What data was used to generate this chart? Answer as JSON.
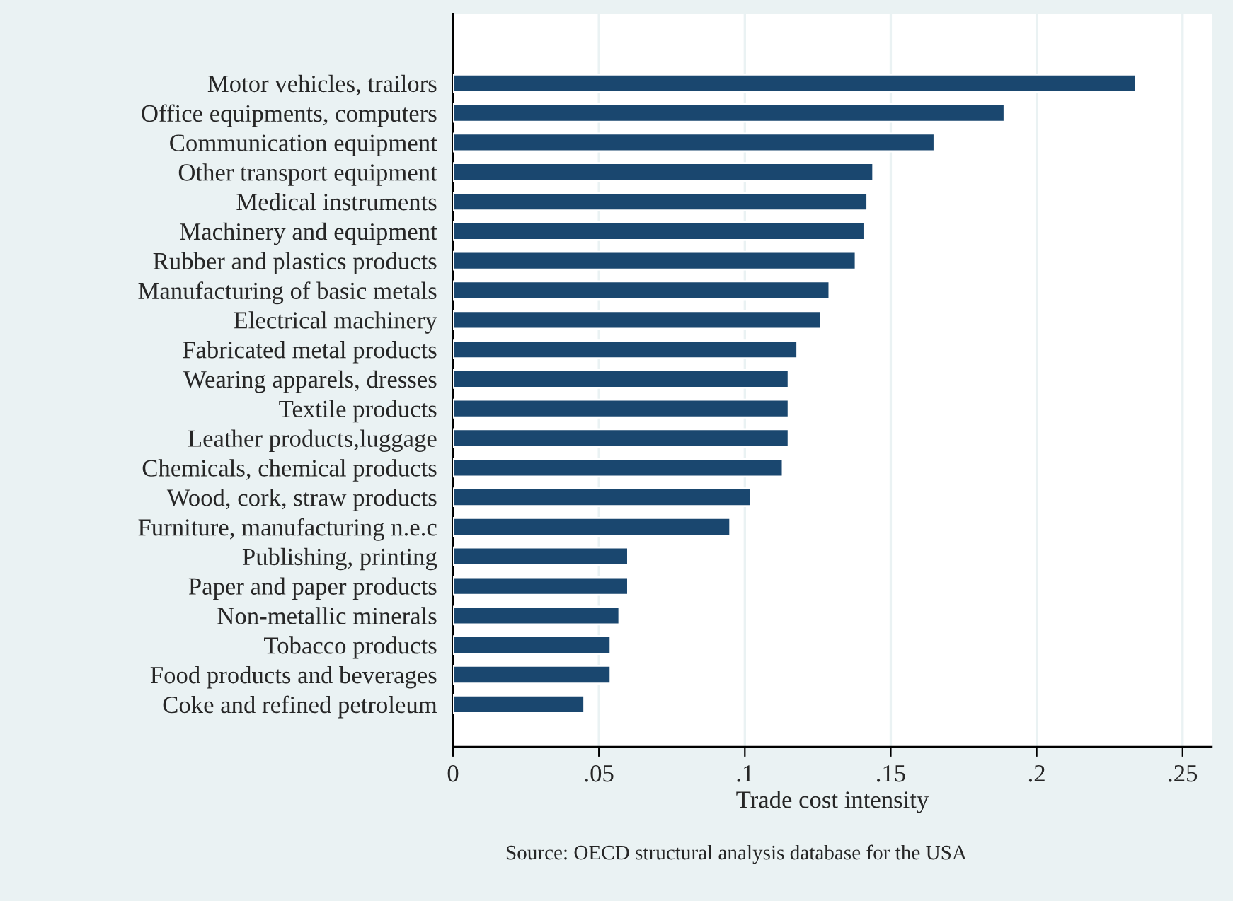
{
  "chart_data": {
    "type": "bar",
    "orientation": "horizontal",
    "categories": [
      "Motor vehicles, trailors",
      "Office equipments, computers",
      "Communication equipment",
      "Other transport equipment",
      "Medical instruments",
      "Machinery and equipment",
      "Rubber and plastics products",
      "Manufacturing of basic metals",
      "Electrical machinery",
      "Fabricated metal products",
      "Wearing apparels, dresses",
      "Textile products",
      "Leather products,luggage",
      "Chemicals, chemical products",
      "Wood, cork, straw products",
      "Furniture, manufacturing n.e.c",
      "Publishing, printing",
      "Paper and paper products",
      "Non-metallic minerals",
      "Tobacco products",
      "Food products and beverages",
      "Coke and refined petroleum"
    ],
    "values": [
      0.234,
      0.189,
      0.165,
      0.144,
      0.142,
      0.141,
      0.138,
      0.129,
      0.126,
      0.118,
      0.115,
      0.115,
      0.115,
      0.113,
      0.102,
      0.095,
      0.06,
      0.06,
      0.057,
      0.054,
      0.054,
      0.045
    ],
    "color": "#1a476f",
    "xlabel": "Trade cost intensity",
    "xlim": [
      0,
      0.26
    ],
    "xticks": [
      {
        "value": 0,
        "label": "0"
      },
      {
        "value": 0.05,
        "label": ".05"
      },
      {
        "value": 0.1,
        "label": ".1"
      },
      {
        "value": 0.15,
        "label": ".15"
      },
      {
        "value": 0.2,
        "label": ".2"
      },
      {
        "value": 0.25,
        "label": ".25"
      }
    ],
    "grid": "x",
    "annotations": [
      "Source: OECD structural analysis database for the USA"
    ]
  }
}
